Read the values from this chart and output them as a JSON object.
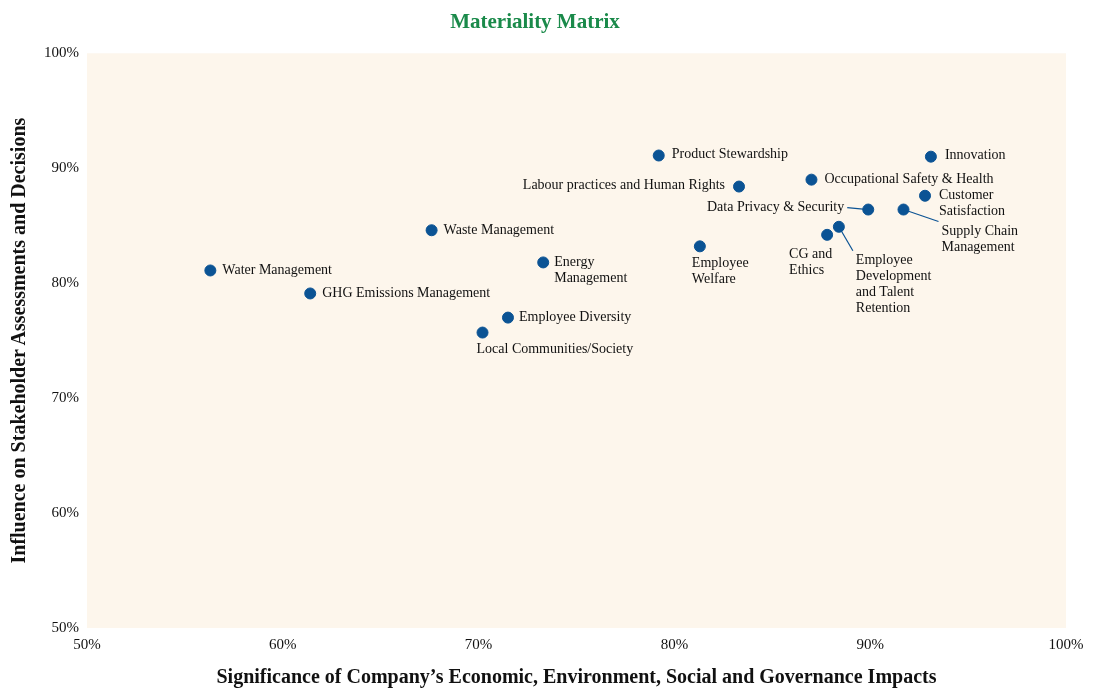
{
  "chart_data": {
    "type": "scatter",
    "title": "Materiality Matrix",
    "xlabel": "Significance of Company’s Economic, Environment, Social and Governance Impacts",
    "ylabel": "Influence on Stakeholder Assessments and Decisions",
    "x": [
      56.3,
      61.4,
      67.6,
      73.3,
      71.5,
      70.2,
      79.2,
      83.3,
      81.3,
      87.0,
      89.9,
      87.8,
      88.4,
      93.1,
      92.8,
      91.7
    ],
    "series": [
      {
        "color": "#0b5394",
        "values": [
          81.1,
          79.1,
          84.6,
          81.8,
          77.0,
          75.7,
          91.1,
          88.4,
          83.2,
          89.0,
          86.4,
          84.2,
          84.9,
          91.0,
          87.6,
          86.4
        ]
      }
    ],
    "annotations": [
      {
        "text": "Water Management",
        "x": 56.3,
        "y": 81.1
      },
      {
        "text": "GHG Emissions Management",
        "x": 61.4,
        "y": 79.1
      },
      {
        "text": "Waste Management",
        "x": 67.6,
        "y": 84.6
      },
      {
        "text": "Energy Management",
        "x": 73.3,
        "y": 81.8
      },
      {
        "text": "Employee Diversity",
        "x": 71.5,
        "y": 77.0
      },
      {
        "text": "Local Communities/Society",
        "x": 70.2,
        "y": 75.7
      },
      {
        "text": "Product Stewardship",
        "x": 79.2,
        "y": 91.1
      },
      {
        "text": "Labour practices and Human Rights",
        "x": 83.3,
        "y": 88.4
      },
      {
        "text": "Employee Welfare",
        "x": 81.3,
        "y": 83.2
      },
      {
        "text": "Occupational Safety & Health",
        "x": 87.0,
        "y": 89.0
      },
      {
        "text": "Data Privacy & Security",
        "x": 89.9,
        "y": 86.4
      },
      {
        "text": "CG and Ethics",
        "x": 87.8,
        "y": 84.2
      },
      {
        "text": "Employee Development and Talent Retention",
        "x": 88.4,
        "y": 84.9
      },
      {
        "text": "Innovation",
        "x": 93.1,
        "y": 91.0
      },
      {
        "text": "Customer Satisfaction",
        "x": 92.8,
        "y": 87.6
      },
      {
        "text": "Supply Chain Management",
        "x": 91.7,
        "y": 86.4
      }
    ],
    "xlim": [
      50,
      100
    ],
    "ylim": [
      50,
      100
    ],
    "xticks": [
      {
        "value": 50,
        "label": "50%"
      },
      {
        "value": 60,
        "label": "60%"
      },
      {
        "value": 70,
        "label": "70%"
      },
      {
        "value": 80,
        "label": "80%"
      },
      {
        "value": 90,
        "label": "90%"
      },
      {
        "value": 100,
        "label": "100%"
      }
    ],
    "yticks": [
      {
        "value": 50,
        "label": "50%"
      },
      {
        "value": 60,
        "label": "60%"
      },
      {
        "value": 70,
        "label": "70%"
      },
      {
        "value": 80,
        "label": "80%"
      },
      {
        "value": 90,
        "label": "90%"
      },
      {
        "value": 100,
        "label": "100%"
      }
    ],
    "grid": false,
    "legend": false,
    "marker": "circle"
  }
}
